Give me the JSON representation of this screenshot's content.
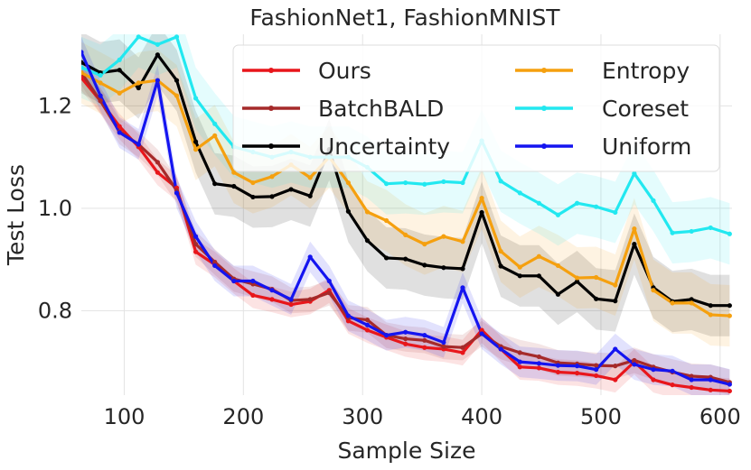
{
  "chart_data": {
    "type": "line",
    "title": "FashionNet1, FashionMNIST",
    "xlabel": "Sample Size",
    "ylabel": "Test Loss",
    "xlim": [
      64,
      610
    ],
    "ylim": [
      0.635,
      1.34
    ],
    "xticks": [
      100,
      200,
      300,
      400,
      500,
      600
    ],
    "yticks": [
      0.8,
      1.0,
      1.2
    ],
    "yticklabels": [
      "0.8",
      "1.0",
      "1.2"
    ],
    "grid": true,
    "legend": "top-right",
    "x": [
      64,
      80,
      96,
      112,
      128,
      144,
      160,
      176,
      192,
      208,
      224,
      240,
      256,
      272,
      288,
      304,
      320,
      336,
      352,
      368,
      384,
      400,
      416,
      432,
      448,
      464,
      480,
      496,
      512,
      528,
      544,
      560,
      576,
      592,
      608
    ],
    "series": [
      {
        "name": "Ours",
        "color": "#e8161b",
        "values": [
          1.255,
          1.21,
          1.16,
          1.12,
          1.07,
          1.04,
          0.915,
          0.89,
          0.858,
          0.83,
          0.822,
          0.812,
          0.818,
          0.84,
          0.78,
          0.762,
          0.748,
          0.735,
          0.728,
          0.725,
          0.718,
          0.762,
          0.725,
          0.69,
          0.688,
          0.68,
          0.678,
          0.673,
          0.665,
          0.7,
          0.665,
          0.655,
          0.65,
          0.645,
          0.643
        ],
        "band": 0.025
      },
      {
        "name": "BatchBALD",
        "color": "#a52a2a",
        "values": [
          1.265,
          1.21,
          1.15,
          1.125,
          1.09,
          1.035,
          0.93,
          0.895,
          0.862,
          0.852,
          0.842,
          0.82,
          0.822,
          0.835,
          0.786,
          0.782,
          0.752,
          0.745,
          0.742,
          0.73,
          0.728,
          0.755,
          0.73,
          0.718,
          0.71,
          0.698,
          0.696,
          0.693,
          0.692,
          0.703,
          0.69,
          0.68,
          0.672,
          0.67,
          0.66
        ],
        "band": 0.025
      },
      {
        "name": "Uncertainty",
        "color": "#000000",
        "values": [
          1.285,
          1.265,
          1.27,
          1.235,
          1.3,
          1.25,
          1.13,
          1.048,
          1.043,
          1.022,
          1.023,
          1.037,
          1.024,
          1.115,
          0.994,
          0.937,
          0.903,
          0.901,
          0.889,
          0.884,
          0.882,
          0.992,
          0.887,
          0.868,
          0.868,
          0.832,
          0.857,
          0.823,
          0.819,
          0.93,
          0.845,
          0.818,
          0.822,
          0.81,
          0.81
        ],
        "band": 0.06
      },
      {
        "name": "Entropy",
        "color": "#f5a00f",
        "values": [
          1.265,
          1.245,
          1.225,
          1.245,
          1.25,
          1.22,
          1.115,
          1.142,
          1.07,
          1.05,
          1.062,
          1.085,
          1.06,
          1.1,
          1.05,
          0.993,
          0.976,
          0.948,
          0.93,
          0.945,
          0.935,
          1.02,
          0.916,
          0.885,
          0.906,
          0.888,
          0.864,
          0.865,
          0.85,
          0.96,
          0.84,
          0.815,
          0.815,
          0.792,
          0.79
        ],
        "band": 0.06
      },
      {
        "name": "Coreset",
        "color": "#22e8f0",
        "values": [
          1.275,
          1.26,
          1.29,
          1.335,
          1.32,
          1.335,
          1.215,
          1.165,
          1.12,
          1.11,
          1.1,
          1.11,
          1.1,
          1.1,
          1.1,
          1.08,
          1.048,
          1.05,
          1.047,
          1.052,
          1.05,
          1.132,
          1.053,
          1.03,
          1.01,
          0.987,
          1.01,
          1.003,
          0.992,
          1.068,
          1.015,
          0.952,
          0.955,
          0.962,
          0.95
        ],
        "band": 0.06
      },
      {
        "name": "Uniform",
        "color": "#1414f0",
        "values": [
          1.305,
          1.22,
          1.148,
          1.125,
          1.25,
          1.03,
          0.945,
          0.888,
          0.858,
          0.858,
          0.84,
          0.822,
          0.905,
          0.858,
          0.79,
          0.772,
          0.752,
          0.758,
          0.752,
          0.738,
          0.845,
          0.755,
          0.725,
          0.7,
          0.697,
          0.693,
          0.692,
          0.685,
          0.725,
          0.695,
          0.685,
          0.682,
          0.665,
          0.665,
          0.656
        ],
        "band": 0.03
      }
    ],
    "legend_order": [
      "Ours",
      "BatchBALD",
      "Uncertainty",
      "Entropy",
      "Coreset",
      "Uniform"
    ]
  }
}
